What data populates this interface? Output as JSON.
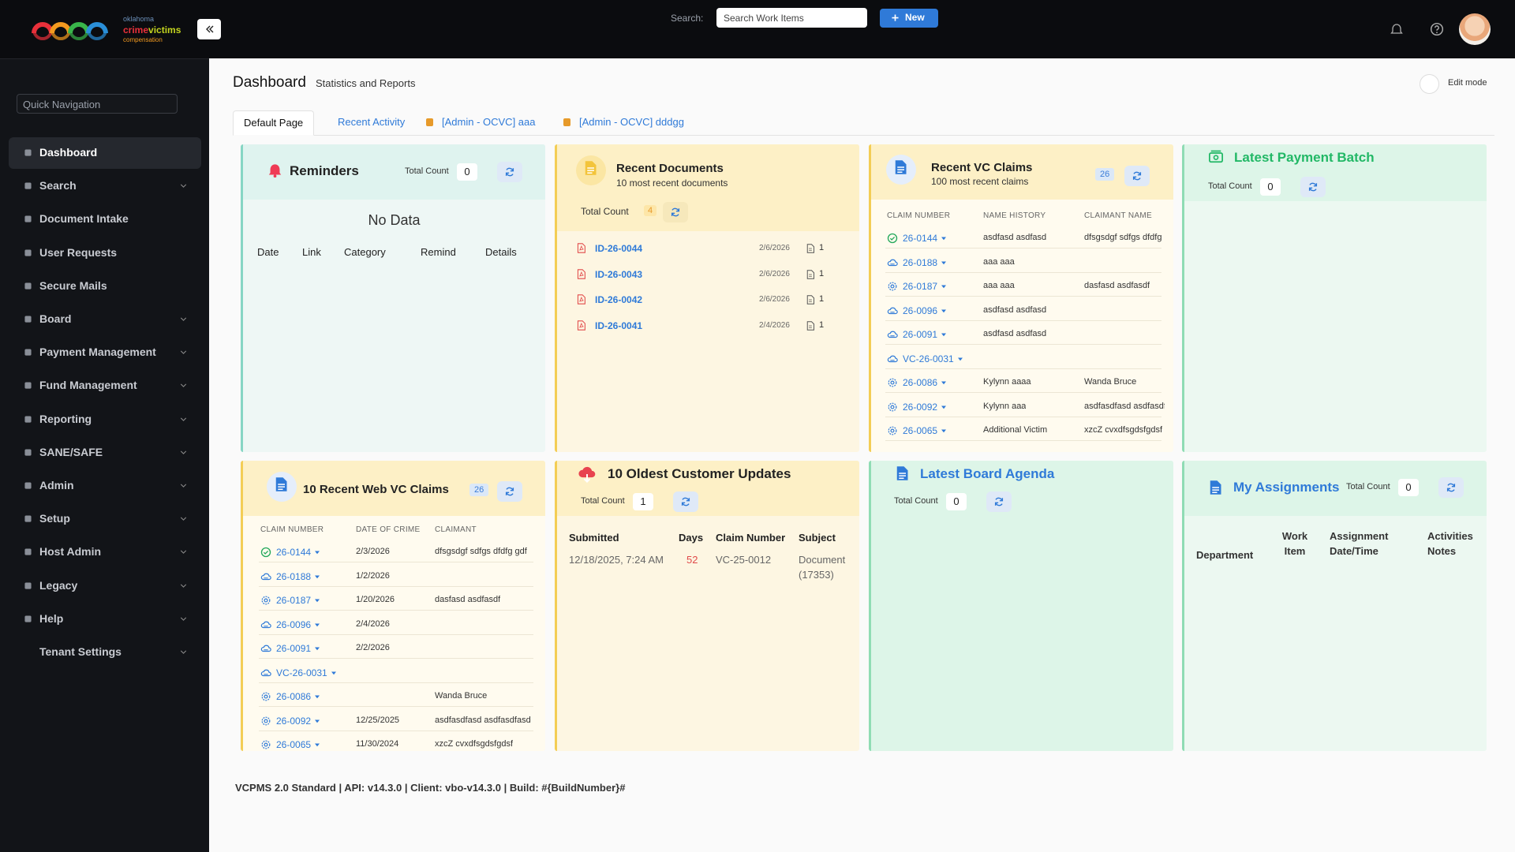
{
  "header": {
    "logo": {
      "line1": "oklahoma",
      "line2a": "crime",
      "line2b": "victims",
      "line3": "compensation"
    },
    "search_label": "Search:",
    "search_placeholder": "Search Work Items",
    "new_button": "New"
  },
  "sidebar": {
    "quick_nav": "Quick Navigation",
    "items": [
      {
        "label": "Dashboard",
        "expandable": false,
        "active": true
      },
      {
        "label": "Search",
        "expandable": true,
        "active": false
      },
      {
        "label": "Document Intake",
        "expandable": false,
        "active": false
      },
      {
        "label": "User Requests",
        "expandable": false,
        "active": false
      },
      {
        "label": "Secure Mails",
        "expandable": false,
        "active": false
      },
      {
        "label": "Board",
        "expandable": true,
        "active": false
      },
      {
        "label": "Payment Management",
        "expandable": true,
        "active": false
      },
      {
        "label": "Fund Management",
        "expandable": true,
        "active": false
      },
      {
        "label": "Reporting",
        "expandable": true,
        "active": false
      },
      {
        "label": "SANE/SAFE",
        "expandable": true,
        "active": false
      },
      {
        "label": "Admin",
        "expandable": true,
        "active": false
      },
      {
        "label": "Setup",
        "expandable": true,
        "active": false
      },
      {
        "label": "Host Admin",
        "expandable": true,
        "active": false
      },
      {
        "label": "Legacy",
        "expandable": true,
        "active": false
      },
      {
        "label": "Help",
        "expandable": true,
        "active": false
      },
      {
        "label": "Tenant Settings",
        "expandable": true,
        "active": false
      }
    ]
  },
  "page": {
    "title": "Dashboard",
    "subtitle": "Statistics and Reports",
    "edit_mode": "Edit mode",
    "tabs": [
      "Default Page",
      "Recent Activity",
      "[Admin - OCVC] aaa",
      "[Admin - OCVC] dddgg"
    ]
  },
  "panels": {
    "reminders": {
      "title": "Reminders",
      "total_label": "Total Count",
      "total": 0,
      "empty": "No Data",
      "columns": [
        "Date",
        "Link",
        "Category",
        "Remind",
        "Details"
      ]
    },
    "recent_documents": {
      "title": "Recent Documents",
      "subtitle": "10 most recent documents",
      "total_label": "Total Count",
      "total": 4,
      "rows": [
        {
          "id": "ID-26-0044",
          "date": "2/6/2026",
          "count": 1
        },
        {
          "id": "ID-26-0043",
          "date": "2/6/2026",
          "count": 1
        },
        {
          "id": "ID-26-0042",
          "date": "2/6/2026",
          "count": 1
        },
        {
          "id": "ID-26-0041",
          "date": "2/4/2026",
          "count": 1
        }
      ]
    },
    "recent_vc_claims": {
      "title": "Recent VC Claims",
      "subtitle": "100 most recent claims",
      "badge": 26,
      "columns": [
        "CLAIM NUMBER",
        "NAME HISTORY",
        "CLAIMANT NAME"
      ],
      "rows": [
        {
          "status": "check",
          "claim": "26-0144",
          "name": "asdfasd asdfasd",
          "claimant": "dfsgsdgf sdfgs dfdfg gdf"
        },
        {
          "status": "cloud",
          "claim": "26-0188",
          "name": "aaa aaa",
          "claimant": null
        },
        {
          "status": "gear",
          "claim": "26-0187",
          "name": "aaa aaa",
          "claimant": "dasfasd asdfasdf"
        },
        {
          "status": "cloud",
          "claim": "26-0096",
          "name": "asdfasd asdfasd",
          "claimant": null
        },
        {
          "status": "cloud",
          "claim": "26-0091",
          "name": "asdfasd asdfasd",
          "claimant": null
        },
        {
          "status": "cloud",
          "claim": "VC-26-0031",
          "name": null,
          "claimant": null
        },
        {
          "status": "gear",
          "claim": "26-0086",
          "name": "Kylynn aaaa",
          "claimant": "Wanda Bruce"
        },
        {
          "status": "gear",
          "claim": "26-0092",
          "name": "Kylynn aaa",
          "claimant": "asdfasdfasd asdfasdfasd"
        },
        {
          "status": "gear",
          "claim": "26-0065",
          "name": "Additional Victim",
          "claimant": "xzcZ cvxdfsgdsfgdsf"
        }
      ]
    },
    "latest_payment_batch": {
      "title": "Latest Payment Batch",
      "total_label": "Total Count",
      "total": 0
    },
    "recent_web_vc_claims": {
      "title": "10 Recent Web VC Claims",
      "badge": 26,
      "columns": [
        "CLAIM NUMBER",
        "DATE OF CRIME",
        "CLAIMANT"
      ],
      "rows": [
        {
          "status": "check",
          "claim": "26-0144",
          "date": "2/3/2026",
          "claimant": "dfsgsdgf sdfgs dfdfg gdf"
        },
        {
          "status": "cloud",
          "claim": "26-0188",
          "date": "1/2/2026",
          "claimant": null
        },
        {
          "status": "gear",
          "claim": "26-0187",
          "date": "1/20/2026",
          "claimant": "dasfasd asdfasdf"
        },
        {
          "status": "cloud",
          "claim": "26-0096",
          "date": "2/4/2026",
          "claimant": null
        },
        {
          "status": "cloud",
          "claim": "26-0091",
          "date": "2/2/2026",
          "claimant": null
        },
        {
          "status": "cloud",
          "claim": "VC-26-0031",
          "date": null,
          "claimant": null
        },
        {
          "status": "gear",
          "claim": "26-0086",
          "date": null,
          "claimant": "Wanda Bruce"
        },
        {
          "status": "gear",
          "claim": "26-0092",
          "date": "12/25/2025",
          "claimant": "asdfasdfasd asdfasdfasd"
        },
        {
          "status": "gear",
          "claim": "26-0065",
          "date": "11/30/2024",
          "claimant": "xzcZ cvxdfsgdsfgdsf"
        }
      ]
    },
    "oldest_customer_updates": {
      "title": "10 Oldest Customer Updates",
      "total_label": "Total Count",
      "total": 1,
      "columns": [
        "Submitted",
        "Days",
        "Claim Number",
        "Subject"
      ],
      "rows": [
        [
          "12/18/2025, 7:24 AM",
          52,
          "VC-25-0012",
          "Document (17353)"
        ]
      ]
    },
    "latest_board_agenda": {
      "title": "Latest Board Agenda",
      "total_label": "Total Count",
      "total": 0
    },
    "my_assignments": {
      "title": "My Assignments",
      "total_label": "Total Count",
      "total": 0,
      "columns": [
        "Department",
        "Work Item",
        "Assignment Date/Time",
        "Activities Notes"
      ]
    }
  },
  "footer": "VCPMS 2.0 Standard | API: v14.3.0 | Client: vbo-v14.3.0 | Build: #{BuildNumber}#"
}
